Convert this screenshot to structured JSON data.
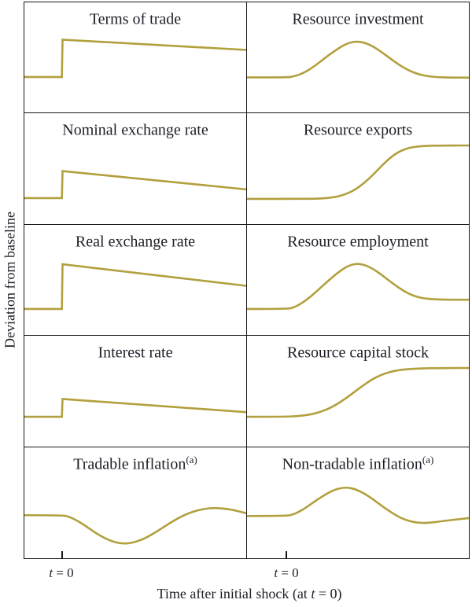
{
  "chart_data": {
    "type": "line",
    "layout": "2x5 grid of small-multiple impulse-response panels, no numeric axes, shared baseline style",
    "line_color": "#b2a03e",
    "border_color": "#161616",
    "ylabel": "Deviation from baseline",
    "xlabel_parts": {
      "pre": "Time after initial shock (at ",
      "italic": "t",
      "post": " = 0)"
    },
    "tick_label_parts": {
      "italic": "t",
      "rest": " = 0"
    },
    "columns": [
      {
        "t0_frac": 0.169
      },
      {
        "t0_frac": 0.177
      }
    ],
    "y_units": "normalized panel position (0 = panel top, 1 = panel bottom); charts are qualitative with no numeric scale shown",
    "panels": [
      {
        "title": "Terms of trade",
        "sup": "",
        "column": 0,
        "row": 0,
        "smooth": false,
        "shape": "flat at baseline, vertical step up at t=0, then slow linear decline staying well above baseline",
        "points": [
          [
            0,
            0.676
          ],
          [
            0.169,
            0.676
          ],
          [
            0.172,
            0.338
          ],
          [
            1,
            0.431
          ]
        ]
      },
      {
        "title": "Resource investment",
        "sup": "",
        "column": 1,
        "row": 0,
        "smooth": true,
        "shape": "flat baseline, smooth hump rising from t=0, peak near mid-panel, returns to baseline",
        "points": [
          [
            0,
            0.68
          ],
          [
            0.177,
            0.68
          ],
          [
            0.21,
            0.672
          ],
          [
            0.25,
            0.645
          ],
          [
            0.29,
            0.598
          ],
          [
            0.33,
            0.538
          ],
          [
            0.37,
            0.475
          ],
          [
            0.41,
            0.42
          ],
          [
            0.44,
            0.383
          ],
          [
            0.47,
            0.36
          ],
          [
            0.5,
            0.355
          ],
          [
            0.53,
            0.365
          ],
          [
            0.57,
            0.4
          ],
          [
            0.61,
            0.455
          ],
          [
            0.65,
            0.515
          ],
          [
            0.69,
            0.572
          ],
          [
            0.73,
            0.618
          ],
          [
            0.77,
            0.65
          ],
          [
            0.81,
            0.668
          ],
          [
            0.86,
            0.678
          ],
          [
            0.92,
            0.681
          ],
          [
            1,
            0.682
          ]
        ]
      },
      {
        "title": "Nominal exchange rate",
        "sup": "",
        "column": 0,
        "row": 1,
        "smooth": false,
        "shape": "flat at baseline, moderate step up at t=0, then linear decline back toward baseline",
        "points": [
          [
            0,
            0.769
          ],
          [
            0.169,
            0.769
          ],
          [
            0.172,
            0.524
          ],
          [
            1,
            0.69
          ]
        ]
      },
      {
        "title": "Resource exports",
        "sup": "",
        "column": 1,
        "row": 1,
        "smooth": true,
        "shape": "flat low, delayed S-shaped rise to a higher plateau",
        "points": [
          [
            0,
            0.776
          ],
          [
            0.28,
            0.776
          ],
          [
            0.34,
            0.772
          ],
          [
            0.39,
            0.762
          ],
          [
            0.43,
            0.744
          ],
          [
            0.47,
            0.712
          ],
          [
            0.51,
            0.662
          ],
          [
            0.55,
            0.594
          ],
          [
            0.59,
            0.512
          ],
          [
            0.63,
            0.43
          ],
          [
            0.67,
            0.365
          ],
          [
            0.71,
            0.325
          ],
          [
            0.75,
            0.305
          ],
          [
            0.8,
            0.296
          ],
          [
            0.86,
            0.293
          ],
          [
            1,
            0.292
          ]
        ]
      },
      {
        "title": "Real exchange rate",
        "sup": "",
        "column": 0,
        "row": 2,
        "smooth": false,
        "shape": "flat at baseline, large step up at t=0, then gradual linear decline remaining above baseline",
        "points": [
          [
            0,
            0.762
          ],
          [
            0.169,
            0.762
          ],
          [
            0.172,
            0.357
          ],
          [
            1,
            0.552
          ]
        ]
      },
      {
        "title": "Resource employment",
        "sup": "",
        "column": 1,
        "row": 2,
        "smooth": true,
        "shape": "flat baseline, hump rising from t=0, peak near mid-panel, settles slightly above baseline",
        "points": [
          [
            0,
            0.762
          ],
          [
            0.177,
            0.762
          ],
          [
            0.21,
            0.75
          ],
          [
            0.25,
            0.706
          ],
          [
            0.29,
            0.645
          ],
          [
            0.33,
            0.572
          ],
          [
            0.37,
            0.5
          ],
          [
            0.41,
            0.432
          ],
          [
            0.44,
            0.39
          ],
          [
            0.47,
            0.36
          ],
          [
            0.5,
            0.352
          ],
          [
            0.53,
            0.362
          ],
          [
            0.57,
            0.4
          ],
          [
            0.61,
            0.458
          ],
          [
            0.65,
            0.52
          ],
          [
            0.69,
            0.578
          ],
          [
            0.73,
            0.625
          ],
          [
            0.77,
            0.655
          ],
          [
            0.81,
            0.67
          ],
          [
            0.86,
            0.676
          ],
          [
            0.92,
            0.678
          ],
          [
            1,
            0.678
          ]
        ]
      },
      {
        "title": "Interest rate",
        "sup": "",
        "column": 0,
        "row": 3,
        "smooth": false,
        "shape": "flat at baseline, small step up at t=0, then slow linear decline toward baseline",
        "points": [
          [
            0,
            0.734
          ],
          [
            0.169,
            0.734
          ],
          [
            0.172,
            0.573
          ],
          [
            1,
            0.692
          ]
        ]
      },
      {
        "title": "Resource capital stock",
        "sup": "",
        "column": 1,
        "row": 3,
        "smooth": true,
        "shape": "flat low, gradual S-shaped rise to a higher plateau",
        "points": [
          [
            0,
            0.734
          ],
          [
            0.17,
            0.734
          ],
          [
            0.23,
            0.728
          ],
          [
            0.28,
            0.716
          ],
          [
            0.32,
            0.697
          ],
          [
            0.36,
            0.668
          ],
          [
            0.4,
            0.627
          ],
          [
            0.44,
            0.575
          ],
          [
            0.48,
            0.515
          ],
          [
            0.52,
            0.455
          ],
          [
            0.56,
            0.4
          ],
          [
            0.6,
            0.358
          ],
          [
            0.64,
            0.33
          ],
          [
            0.68,
            0.312
          ],
          [
            0.73,
            0.302
          ],
          [
            0.79,
            0.296
          ],
          [
            0.86,
            0.293
          ],
          [
            1,
            0.292
          ]
        ]
      },
      {
        "title": "Tradable inflation",
        "sup": "(a)",
        "column": 0,
        "row": 4,
        "smooth": true,
        "shape": "flat baseline, dips below baseline after t=0 to a trough, rises to a small peak above baseline, eases back toward baseline",
        "points": [
          [
            0,
            0.61
          ],
          [
            0.169,
            0.61
          ],
          [
            0.2,
            0.622
          ],
          [
            0.24,
            0.66
          ],
          [
            0.28,
            0.712
          ],
          [
            0.32,
            0.768
          ],
          [
            0.36,
            0.815
          ],
          [
            0.4,
            0.848
          ],
          [
            0.43,
            0.862
          ],
          [
            0.46,
            0.865
          ],
          [
            0.49,
            0.856
          ],
          [
            0.53,
            0.83
          ],
          [
            0.57,
            0.79
          ],
          [
            0.61,
            0.74
          ],
          [
            0.65,
            0.688
          ],
          [
            0.69,
            0.64
          ],
          [
            0.73,
            0.6
          ],
          [
            0.77,
            0.572
          ],
          [
            0.81,
            0.553
          ],
          [
            0.85,
            0.545
          ],
          [
            0.89,
            0.548
          ],
          [
            0.94,
            0.562
          ],
          [
            1,
            0.592
          ]
        ]
      },
      {
        "title": "Non-tradable inflation",
        "sup": "(a)",
        "column": 1,
        "row": 4,
        "smooth": true,
        "shape": "flat baseline, hump above baseline after t=0, then undershoots below baseline and recovers slightly",
        "points": [
          [
            0,
            0.617
          ],
          [
            0.177,
            0.617
          ],
          [
            0.21,
            0.603
          ],
          [
            0.25,
            0.562
          ],
          [
            0.29,
            0.508
          ],
          [
            0.33,
            0.452
          ],
          [
            0.37,
            0.405
          ],
          [
            0.4,
            0.378
          ],
          [
            0.43,
            0.363
          ],
          [
            0.46,
            0.362
          ],
          [
            0.49,
            0.378
          ],
          [
            0.53,
            0.415
          ],
          [
            0.57,
            0.47
          ],
          [
            0.61,
            0.53
          ],
          [
            0.65,
            0.585
          ],
          [
            0.69,
            0.632
          ],
          [
            0.73,
            0.663
          ],
          [
            0.77,
            0.678
          ],
          [
            0.81,
            0.68
          ],
          [
            0.85,
            0.672
          ],
          [
            0.9,
            0.658
          ],
          [
            1,
            0.636
          ]
        ]
      }
    ]
  }
}
